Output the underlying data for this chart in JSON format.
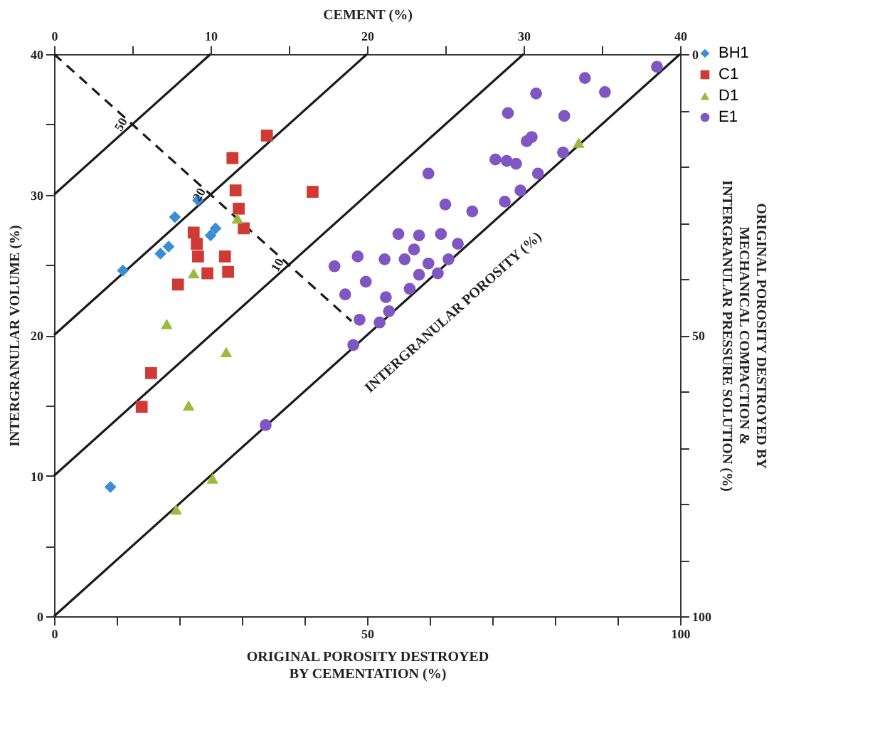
{
  "chart_data": {
    "type": "scatter",
    "x2label": "CEMENT (%)",
    "xlabel": "ORIGINAL POROSITY DESTROYED\nBY CEMENTATION (%)",
    "ylabel": "INTERGRANULAR VOLUME (%)",
    "y2label": "ORIGINAL POROSITY DESTROYED BY\nMECHANICAL COMPACTION &\nINTERGRANULAR PRESSURE SOLUTION (%)",
    "xlim": [
      0,
      100
    ],
    "xticks": [
      0,
      {
        "value": 10,
        "label": null
      },
      {
        "value": 20,
        "label": null
      },
      {
        "value": 30,
        "label": null
      },
      {
        "value": 40,
        "label": null
      },
      50,
      {
        "value": 60,
        "label": null
      },
      {
        "value": 70,
        "label": null
      },
      {
        "value": 80,
        "label": null
      },
      {
        "value": 90,
        "label": null
      },
      100
    ],
    "x2lim": [
      0,
      40
    ],
    "x2ticks": [
      0,
      {
        "value": 5,
        "label": null
      },
      10,
      {
        "value": 15,
        "label": null
      },
      20,
      {
        "value": 25,
        "label": null
      },
      30,
      {
        "value": 35,
        "label": null
      },
      40
    ],
    "ylim": [
      0,
      40
    ],
    "yticks": [
      0,
      {
        "value": 5,
        "label": null
      },
      10,
      {
        "value": 15,
        "label": null
      },
      20,
      {
        "value": 25,
        "label": null
      },
      30,
      {
        "value": 35,
        "label": null
      },
      40
    ],
    "y2lim": [
      100,
      0
    ],
    "y2ticks": [
      0,
      {
        "value": 10,
        "label": null
      },
      {
        "value": 20,
        "label": null
      },
      {
        "value": 30,
        "label": null
      },
      {
        "value": 40,
        "label": null
      },
      50,
      {
        "value": 60,
        "label": null
      },
      {
        "value": 70,
        "label": null
      },
      {
        "value": 80,
        "label": null
      },
      {
        "value": 90,
        "label": null
      },
      100
    ],
    "grid": false,
    "legend": "top right",
    "series": [
      {
        "type": "line",
        "color": "#1a1a1a",
        "line_style": "solid",
        "marker": "none",
        "x": [
          0,
          100
        ],
        "values": [
          0,
          40
        ]
      },
      {
        "type": "line",
        "color": "#1a1a1a",
        "line_style": "solid",
        "marker": "none",
        "x": [
          0,
          75
        ],
        "values": [
          10,
          40
        ]
      },
      {
        "type": "line",
        "color": "#1a1a1a",
        "line_style": "solid",
        "marker": "none",
        "x": [
          0,
          50
        ],
        "values": [
          20,
          40
        ]
      },
      {
        "type": "line",
        "color": "#1a1a1a",
        "line_style": "solid",
        "marker": "none",
        "x": [
          0,
          25
        ],
        "values": [
          30,
          40
        ]
      },
      {
        "type": "line",
        "color": "#1a1a1a",
        "line_style": "dashed",
        "marker": "none",
        "x": [
          0,
          47.5
        ],
        "values": [
          40,
          21
        ]
      },
      {
        "name": "BH1",
        "color": "#3a8fd4",
        "marker": "diamond",
        "x": [
          11,
          17,
          18.3,
          19.3,
          23,
          25.8,
          25,
          9
        ],
        "values": [
          24.6,
          25.8,
          26.3,
          28.4,
          29.6,
          27.6,
          27.1,
          9.2
        ]
      },
      {
        "name": "C1",
        "color": "#d03a35",
        "marker": "square",
        "x": [
          34,
          28.5,
          29,
          41.3,
          29.5,
          30.3,
          22.3,
          22.8,
          23,
          27.3,
          27.8,
          24.5,
          19.8,
          15.5,
          14
        ],
        "values": [
          34.2,
          32.6,
          30.3,
          30.2,
          29.0,
          27.6,
          27.3,
          26.5,
          25.6,
          25.6,
          24.5,
          24.4,
          23.6,
          17.3,
          14.9
        ]
      },
      {
        "name": "D1",
        "color": "#9bbb3c",
        "marker": "triangle",
        "x": [
          29.3,
          22.3,
          18,
          27.5,
          21.5,
          25.3,
          19.5,
          83.8
        ],
        "values": [
          28.3,
          24.4,
          20.8,
          18.8,
          15.0,
          9.8,
          7.6,
          33.7
        ]
      },
      {
        "name": "E1",
        "color": "#7e57c2",
        "marker": "circle",
        "x": [
          96.3,
          84.8,
          88,
          77,
          72.5,
          81.5,
          76.3,
          75.5,
          81.3,
          70.5,
          72.3,
          73.8,
          77.3,
          59.8,
          74.5,
          72,
          62.5,
          66.8,
          55,
          58.3,
          61.8,
          64.5,
          57.5,
          63,
          56,
          59.8,
          58.3,
          61.3,
          48.5,
          52.8,
          44.8,
          49.8,
          46.5,
          53,
          56.8,
          53.5,
          48.8,
          52,
          47.8,
          33.8
        ],
        "values": [
          39.1,
          38.3,
          37.3,
          37.2,
          35.8,
          35.6,
          34.1,
          33.8,
          33.0,
          32.5,
          32.4,
          32.2,
          31.5,
          31.5,
          30.3,
          29.5,
          29.3,
          28.8,
          27.2,
          27.1,
          27.2,
          26.5,
          26.1,
          25.4,
          25.4,
          25.1,
          24.3,
          24.4,
          25.6,
          25.4,
          24.9,
          23.8,
          22.9,
          22.7,
          23.3,
          21.7,
          21.1,
          20.9,
          19.3,
          13.6
        ]
      }
    ],
    "annotations": [
      {
        "text": "50",
        "x": 12.5,
        "y": 35
      },
      {
        "text": "20",
        "x": 25,
        "y": 30
      },
      {
        "text": "10",
        "x": 37.5,
        "y": 25
      },
      "INTERGRANULAR POROSITY (%)"
    ]
  }
}
